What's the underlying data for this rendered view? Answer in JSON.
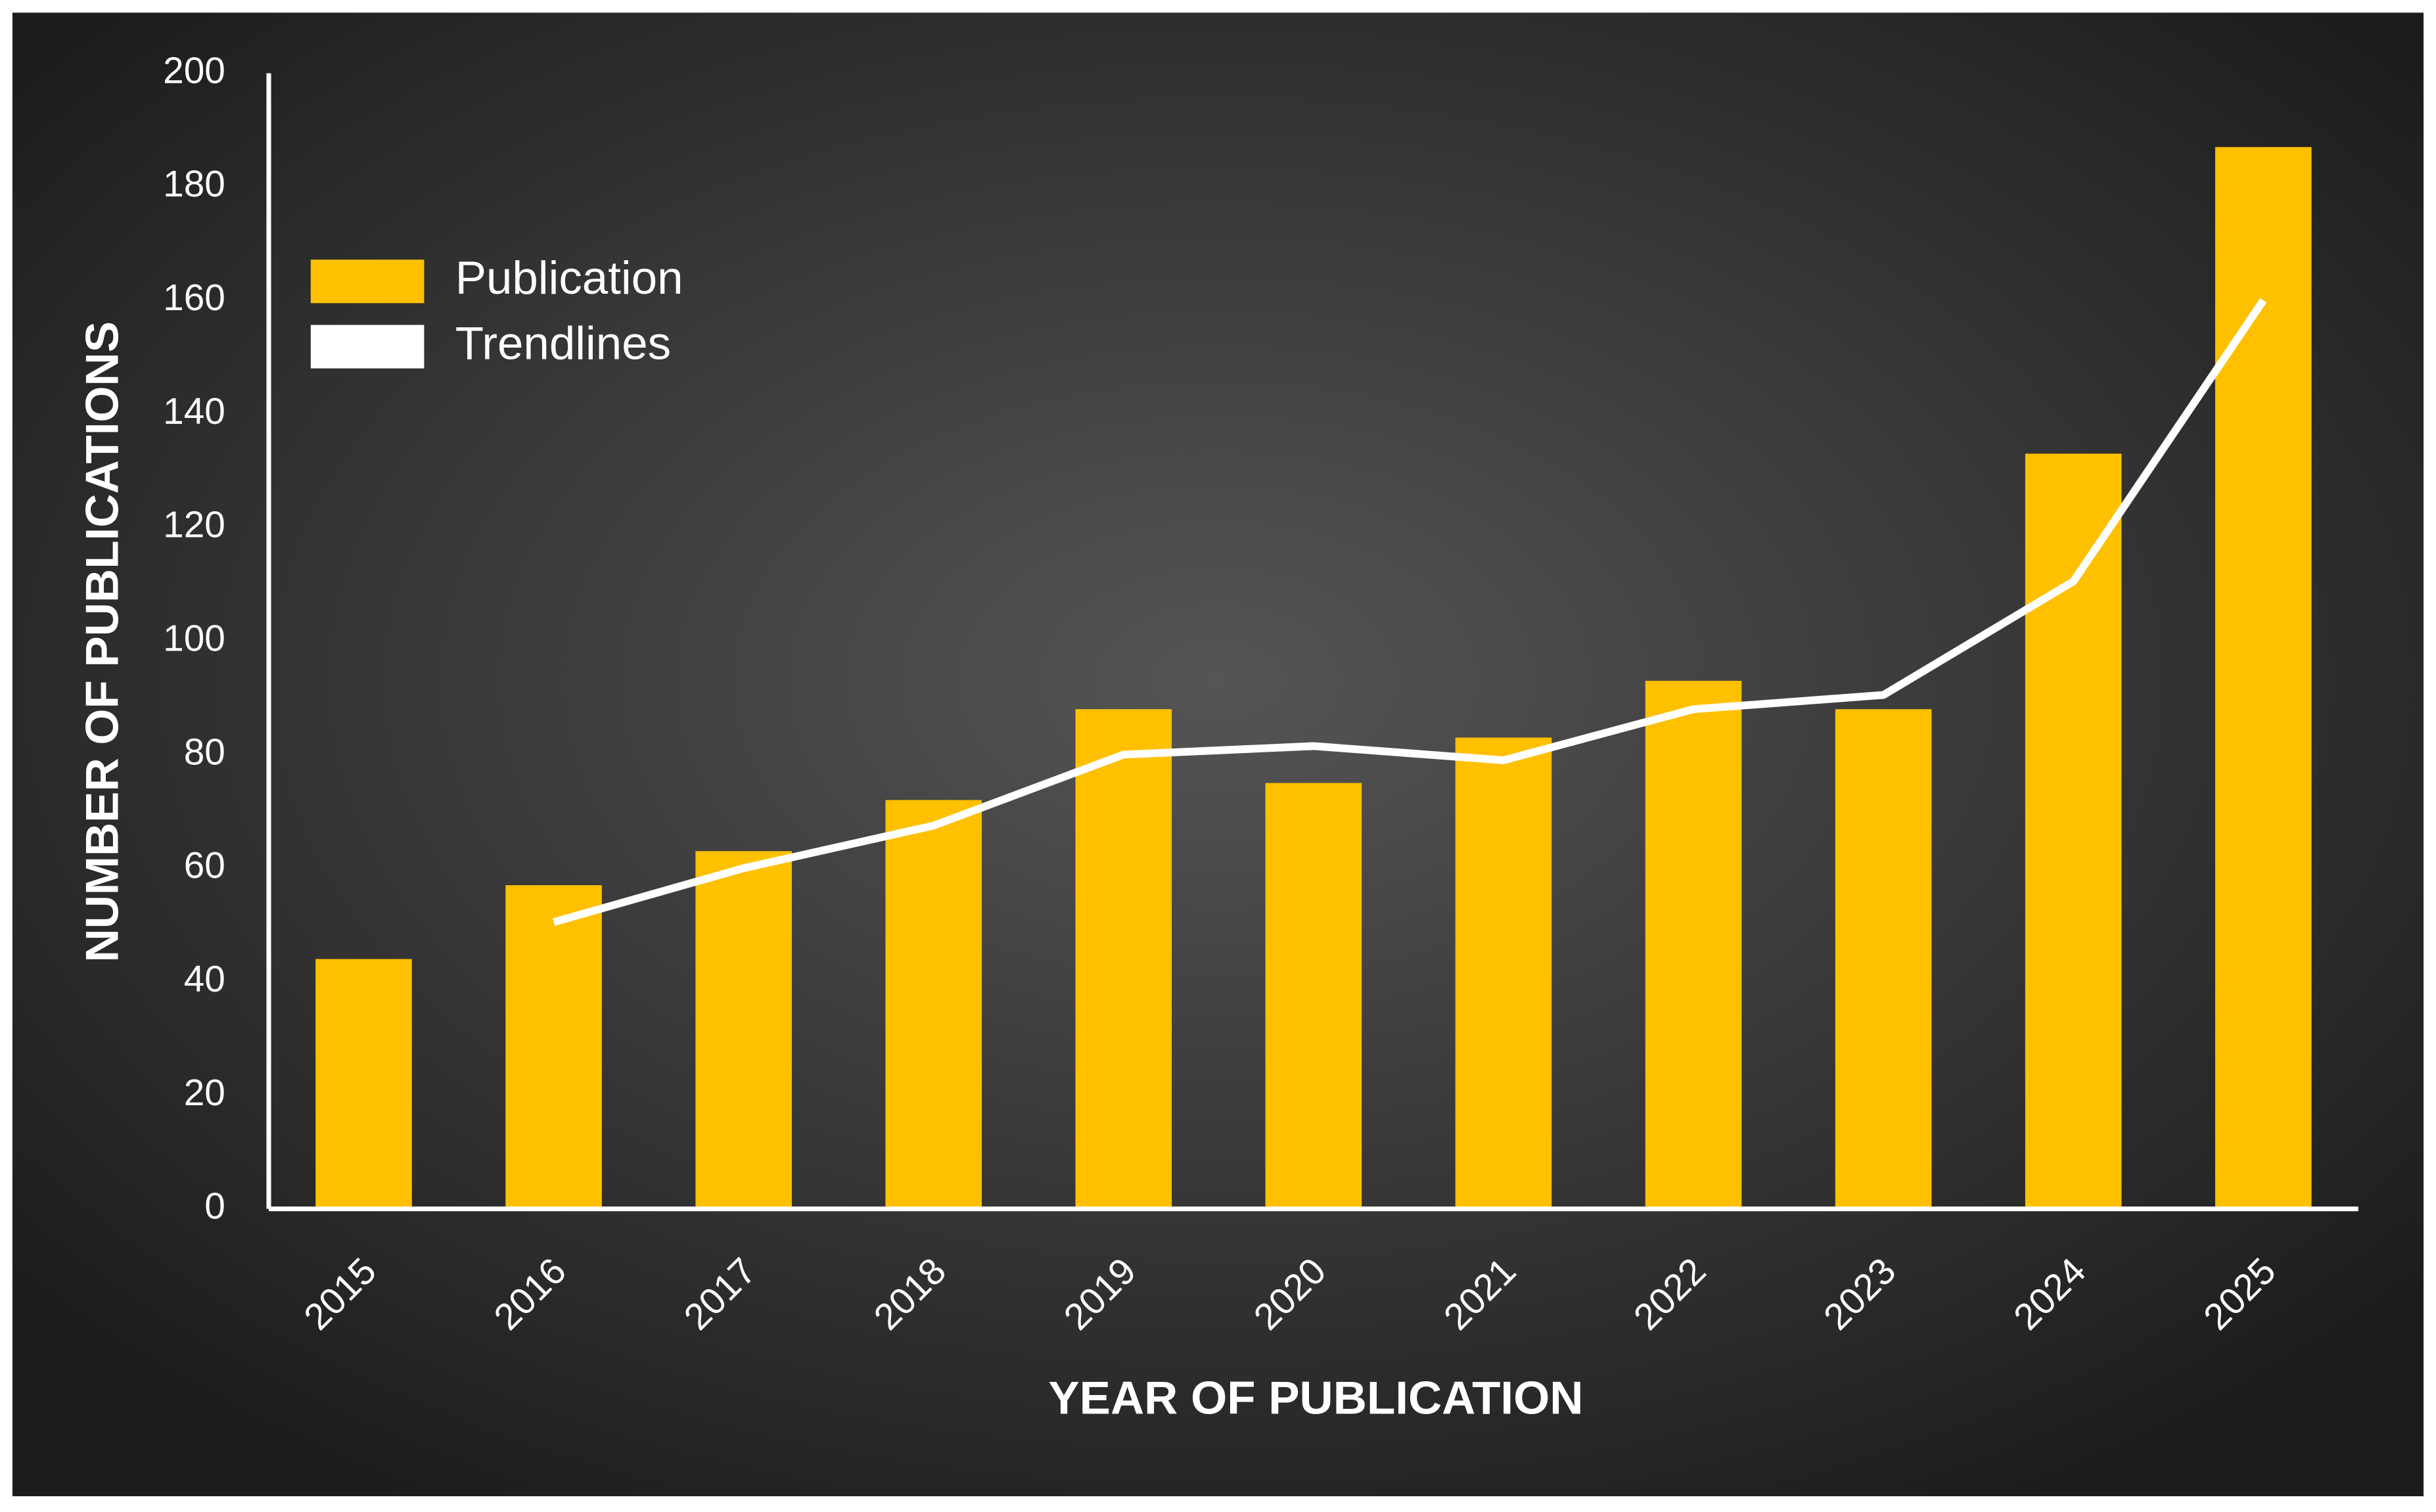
{
  "chart_data": {
    "type": "bar",
    "x_label": "YEAR OF PUBLICATION",
    "y_label": "NUMBER OF PUBLICATIONS",
    "categories": [
      "2015",
      "2016",
      "2017",
      "2018",
      "2019",
      "2020",
      "2021",
      "2022",
      "2023",
      "2024",
      "2025"
    ],
    "series": [
      {
        "name": "Publication",
        "color": "#ffc000",
        "type": "bar",
        "values": [
          44,
          57,
          63,
          72,
          88,
          75,
          83,
          93,
          88,
          133,
          187
        ]
      },
      {
        "name": "Trendlines",
        "color": "#ffffff",
        "type": "line",
        "values": [
          null,
          50.5,
          60,
          67.5,
          80,
          81.5,
          79,
          88,
          90.5,
          110.5,
          160
        ]
      }
    ],
    "ylim": [
      0,
      200
    ],
    "yticks": [
      0,
      20,
      40,
      60,
      80,
      100,
      120,
      140,
      160,
      180,
      200
    ],
    "grid": false,
    "legend": "upper left"
  }
}
